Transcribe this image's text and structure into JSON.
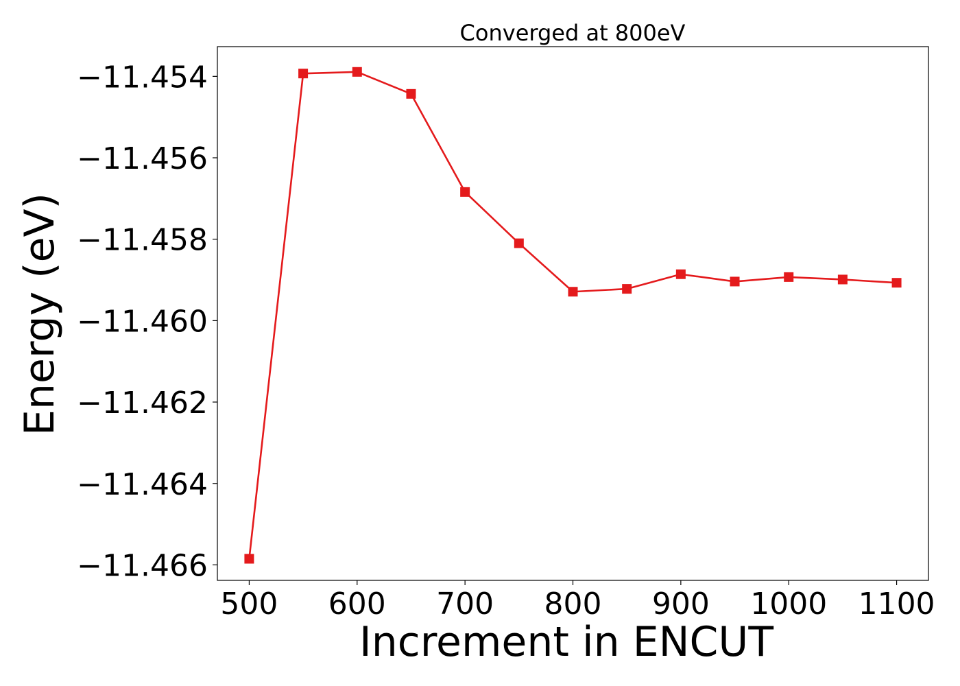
{
  "chart_data": {
    "type": "line",
    "title": "Converged at 800eV",
    "xlabel": "Increment in ENCUT",
    "ylabel": "Energy (eV)",
    "x": [
      500,
      550,
      600,
      650,
      700,
      750,
      800,
      850,
      900,
      950,
      1000,
      1050,
      1100
    ],
    "series": [
      {
        "values": [
          -11.46585,
          -11.45393,
          -11.45389,
          -11.45443,
          -11.45684,
          -11.4581,
          -11.45929,
          -11.45922,
          -11.45886,
          -11.45904,
          -11.45893,
          -11.45899,
          -11.45907
        ],
        "color": "#e41a1c",
        "marker": "square"
      }
    ],
    "xlim": [
      470.5,
      1129.5
    ],
    "ylim": [
      -11.46638,
      -11.45327
    ],
    "xticks": [
      500,
      600,
      700,
      800,
      900,
      1000,
      1100
    ],
    "xtick_labels": [
      "500",
      "600",
      "700",
      "800",
      "900",
      "1000",
      "1100"
    ],
    "yticks": [
      -11.454,
      -11.456,
      -11.458,
      -11.46,
      -11.462,
      -11.464,
      -11.466
    ],
    "ytick_labels": [
      "−11.454",
      "−11.456",
      "−11.458",
      "−11.460",
      "−11.462",
      "−11.464",
      "−11.466"
    ],
    "grid": false,
    "legend": false
  }
}
